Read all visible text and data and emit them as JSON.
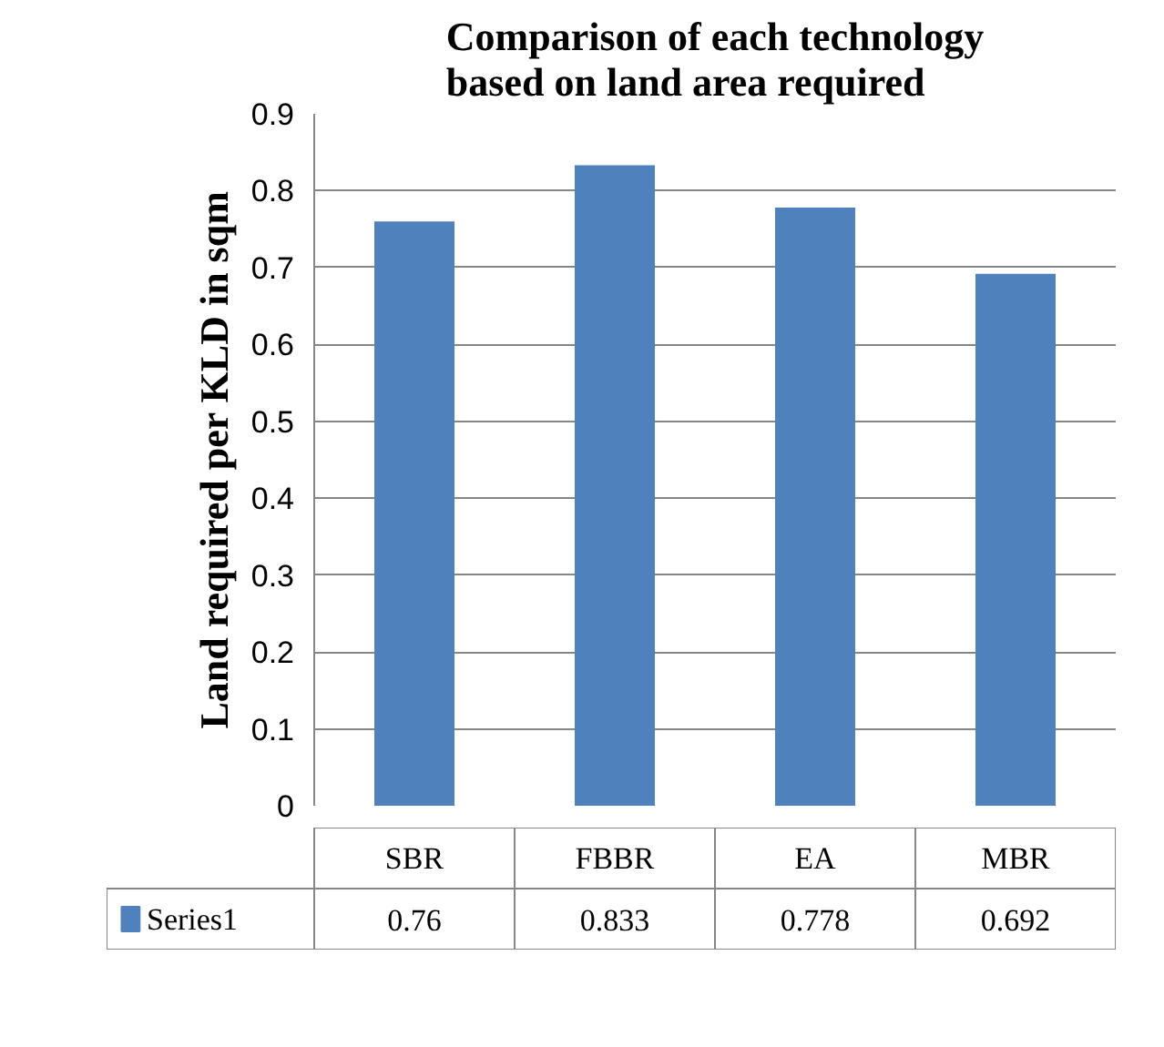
{
  "chart_data": {
    "type": "bar",
    "title": "Comparison of each technology\nbased on land area required",
    "ylabel": "Land required per KLD in sqm",
    "categories": [
      "SBR",
      "FBBR",
      "EA",
      "MBR"
    ],
    "series": [
      {
        "name": "Series1",
        "color": "#4f81bd",
        "values": [
          0.76,
          0.833,
          0.778,
          0.692
        ]
      }
    ],
    "ylim": [
      0,
      0.9
    ],
    "yticks": [
      0,
      0.1,
      0.2,
      0.3,
      0.4,
      0.5,
      0.6,
      0.7,
      0.8,
      0.9
    ],
    "grid": "y",
    "data_labels": true
  }
}
